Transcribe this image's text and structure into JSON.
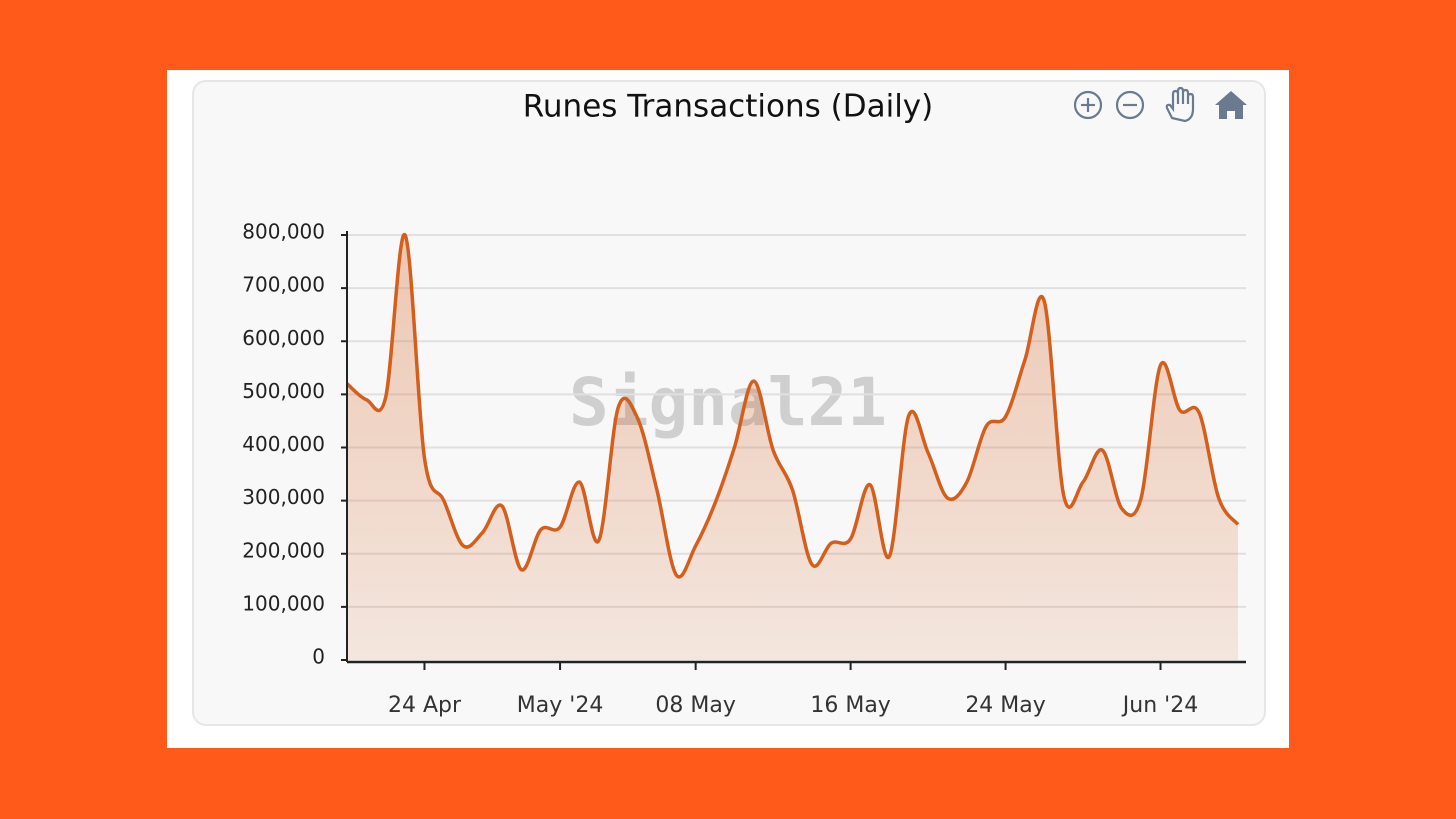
{
  "chart_data": {
    "type": "area",
    "title": "Runes Transactions (Daily)",
    "watermark": "Signal21",
    "x": [
      "2024-04-20",
      "2024-04-21",
      "2024-04-22",
      "2024-04-23",
      "2024-04-24",
      "2024-04-25",
      "2024-04-26",
      "2024-04-27",
      "2024-04-28",
      "2024-04-29",
      "2024-04-30",
      "2024-05-01",
      "2024-05-02",
      "2024-05-03",
      "2024-05-04",
      "2024-05-05",
      "2024-05-06",
      "2024-05-07",
      "2024-05-08",
      "2024-05-09",
      "2024-05-10",
      "2024-05-11",
      "2024-05-12",
      "2024-05-13",
      "2024-05-14",
      "2024-05-15",
      "2024-05-16",
      "2024-05-17",
      "2024-05-18",
      "2024-05-19",
      "2024-05-20",
      "2024-05-21",
      "2024-05-22",
      "2024-05-23",
      "2024-05-24",
      "2024-05-25",
      "2024-05-26",
      "2024-05-27",
      "2024-05-28",
      "2024-05-29",
      "2024-05-30",
      "2024-05-31",
      "2024-06-01",
      "2024-06-02",
      "2024-06-03",
      "2024-06-04",
      "2024-06-05"
    ],
    "values": [
      520000,
      490000,
      495000,
      800000,
      380000,
      300000,
      215000,
      240000,
      290000,
      170000,
      245000,
      250000,
      335000,
      225000,
      475000,
      455000,
      320000,
      160000,
      215000,
      295000,
      400000,
      525000,
      395000,
      320000,
      180000,
      220000,
      228000,
      330000,
      195000,
      460000,
      390000,
      305000,
      335000,
      440000,
      458000,
      565000,
      675000,
      310000,
      335000,
      395000,
      285000,
      305000,
      555000,
      470000,
      465000,
      305000,
      255000
    ],
    "color": "#d45f1d",
    "xlim": [
      "2024-04-20",
      "2024-06-05"
    ],
    "xticks": [
      {
        "value": "2024-04-24",
        "label": "24 Apr"
      },
      {
        "value": "2024-05-01",
        "label": "May '24"
      },
      {
        "value": "2024-05-08",
        "label": "08 May"
      },
      {
        "value": "2024-05-16",
        "label": "16 May"
      },
      {
        "value": "2024-05-24",
        "label": "24 May"
      },
      {
        "value": "2024-06-01",
        "label": "Jun '24"
      }
    ],
    "ylim": [
      0,
      800000
    ],
    "yticks": [
      0,
      {
        "value": 100000,
        "label": "100,000"
      },
      {
        "value": 200000,
        "label": "200,000"
      },
      {
        "value": 300000,
        "label": "300,000"
      },
      {
        "value": 400000,
        "label": "400,000"
      },
      {
        "value": 500000,
        "label": "500,000"
      },
      {
        "value": 600000,
        "label": "600,000"
      },
      {
        "value": 700000,
        "label": "700,000"
      },
      {
        "value": 800000,
        "label": "800,000"
      }
    ],
    "grid": true
  }
}
